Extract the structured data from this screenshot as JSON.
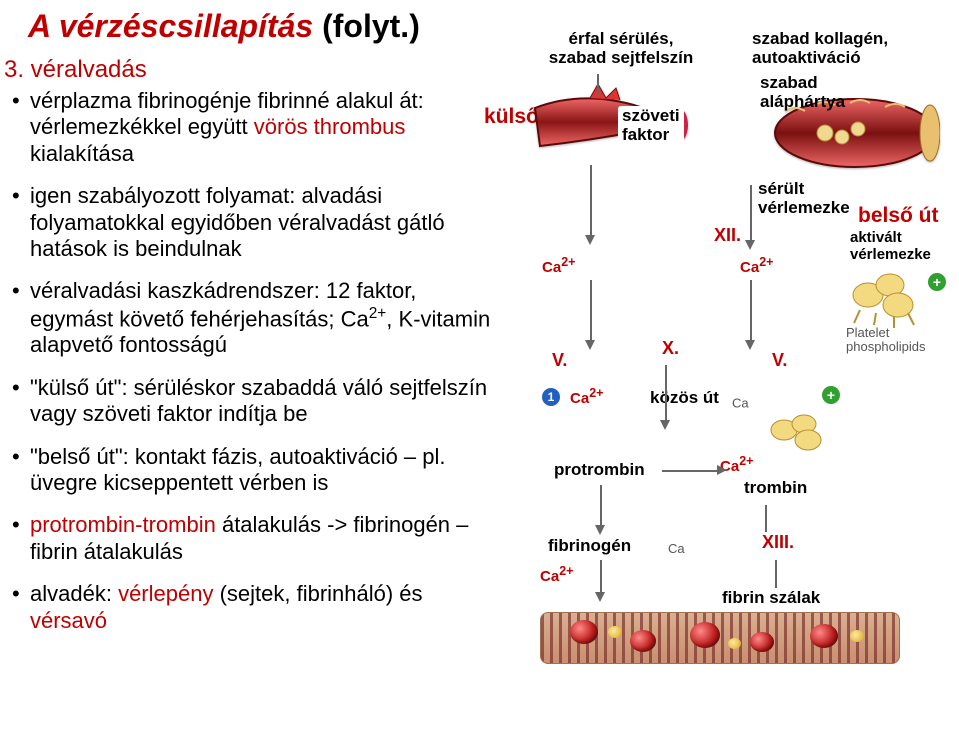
{
  "title_red": "A vérzéscsillapítás",
  "title_black": "(folyt.)",
  "subhead": "3. véralvadás",
  "bullets": [
    {
      "html": "vérplazma fibrinogénje fibrinné alakul át: vérlemezkékkel együtt <span class='red'>vörös thrombus</span> kialakítása"
    },
    {
      "html": "igen szabályozott folyamat: alvadási folyamatokkal egyidőben véralvadást gátló hatások is beindulnak"
    },
    {
      "html": "véralvadási kaszkádrendszer: 12 faktor, egymást követő fehérjehasítás; Ca<span class='sup'>2+</span>, K-vitamin alapvető fontosságú"
    },
    {
      "html": "\"külső út\": sérüléskor szabaddá váló sejtfelszín vagy szöveti faktor indítja be"
    },
    {
      "html": "\"belső út\": kontakt fázis, autoaktiváció – pl. üvegre kicseppentett vérben is"
    },
    {
      "html": "<span class='red'>protrombin-trombin</span> átalakulás -> fibrinogén – fibrin átalakulás"
    },
    {
      "html": "alvadék: <span class='red'>vérlepény</span> (sejtek, fibrinháló) és <span class='red'>vérsavó</span>"
    }
  ],
  "labels": {
    "erfal": "érfal sérülés,\nszabad sejtfelszín",
    "szabad_kollagen": "szabad kollagén,\nautoaktiváció",
    "kulso_ut": "külső út",
    "szoveti_faktor": "szöveti\nfaktor",
    "szabad_alaphartya": "szabad\naláphártya",
    "serult_verlemezke": "sérült\nvérlemezke",
    "belso_ut": "belső út",
    "aktivalt_verlemezke": "aktivált\nvérlemezke",
    "platelet_pl": "Platelet\nphospholipids",
    "kozos_ut": "közös út",
    "protrombin": "protrombin",
    "trombin": "trombin",
    "fibrinogen": "fibrinogén",
    "fibrin_szalak": "fibrin szálak",
    "ca_symbol": "Ca",
    "ca_charge": "2+"
  },
  "factors": {
    "XII": "XII.",
    "V_left": "V.",
    "X": "X.",
    "V_right": "V.",
    "XIII": "XIII."
  },
  "colors": {
    "red": "#c00000",
    "text": "#000000",
    "vessel_dark": "#6b0f0f",
    "vessel_light": "#d24040",
    "arrow": "#666666"
  }
}
